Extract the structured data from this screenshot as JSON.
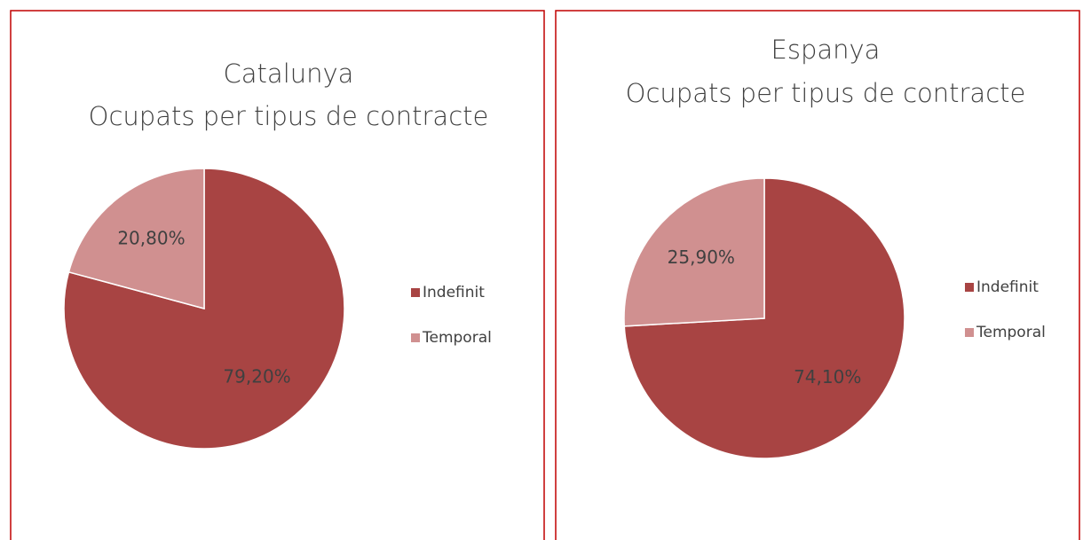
{
  "chart_data": [
    {
      "type": "pie",
      "title": "Catalunya",
      "subtitle": "Ocupats per tipus de contracte",
      "categories": [
        "Indefinit",
        "Temporal"
      ],
      "values": [
        79.2,
        20.8
      ],
      "value_labels": [
        "79,20%",
        "20,80%"
      ],
      "colors": [
        "#a84443",
        "#d09090"
      ],
      "legend": "right"
    },
    {
      "type": "pie",
      "title": "Espanya",
      "subtitle": "Ocupats per tipus de contracte",
      "categories": [
        "Indefinit",
        "Temporal"
      ],
      "values": [
        74.1,
        25.9
      ],
      "value_labels": [
        "74,10%",
        "25,90%"
      ],
      "colors": [
        "#a84443",
        "#d09090"
      ],
      "legend": "right"
    }
  ]
}
